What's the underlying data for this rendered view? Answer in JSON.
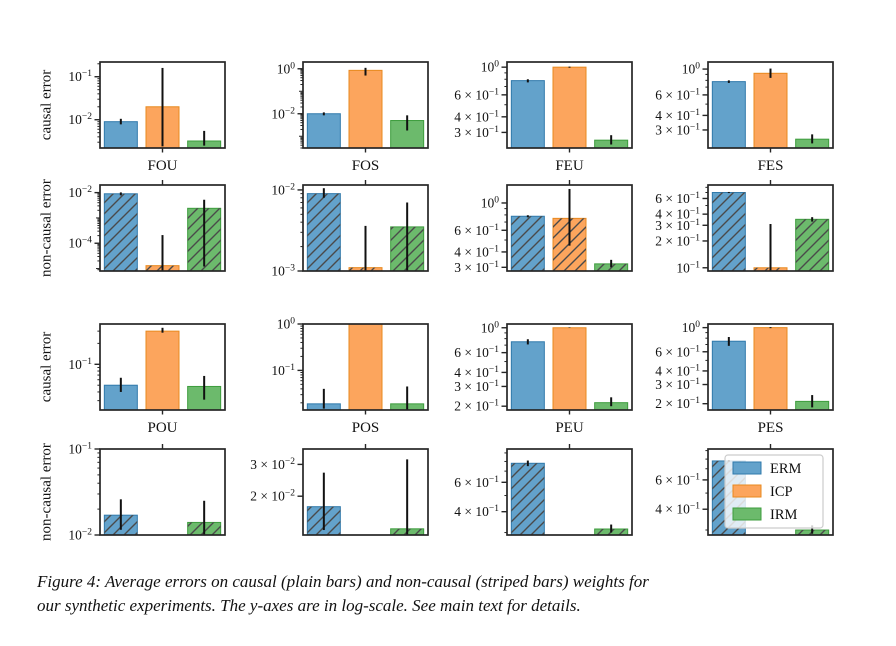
{
  "caption": {
    "line1": "Figure 4: Average errors on causal (plain bars) and non-causal (striped bars) weights for",
    "line2": "our synthetic experiments. The y-axes are in log-scale. See main text for details."
  },
  "colors": {
    "erm_fill": "#63a2cb",
    "erm_edge": "#2f79ab",
    "icp_fill": "#fca55d",
    "icp_edge": "#e8891e",
    "irm_fill": "#6cba6c",
    "irm_edge": "#3d9c3d",
    "hatch": "#4a4a4a",
    "axis": "#262626",
    "errorbar": "#111111",
    "legend_border": "#cccccc",
    "legend_bg": "#ffffff"
  },
  "legend": {
    "entries": [
      {
        "label": "ERM",
        "series": "erm"
      },
      {
        "label": "ICP",
        "series": "icp"
      },
      {
        "label": "IRM",
        "series": "irm"
      }
    ]
  },
  "chart_data": {
    "type": "bar",
    "scale": "log-y",
    "series": [
      "ERM",
      "ICP",
      "IRM"
    ],
    "panels": [
      {
        "name": "FOU-causal",
        "row": 0,
        "col": 0,
        "xlabel": "FOU",
        "ylabel": "causal error",
        "hatched": false,
        "legend": false,
        "ylim": [
          0.0022,
          0.22
        ],
        "yticks": [
          {
            "v": 0.1,
            "m": "",
            "e": "−1"
          },
          {
            "v": 0.01,
            "m": "",
            "e": "−2"
          }
        ],
        "bars": [
          {
            "v": 0.009,
            "lo": 0.0078,
            "hi": 0.0105
          },
          {
            "v": 0.02,
            "lo": 0.0024,
            "hi": 0.16
          },
          {
            "v": 0.0032,
            "lo": 0.0025,
            "hi": 0.0055
          }
        ]
      },
      {
        "name": "FOS-causal",
        "row": 0,
        "col": 1,
        "xlabel": "FOS",
        "ylabel": null,
        "hatched": false,
        "legend": false,
        "ylim": [
          0.0003,
          2.0
        ],
        "yticks": [
          {
            "v": 1,
            "m": "",
            "e": "0"
          },
          {
            "v": 0.01,
            "m": "",
            "e": "−2"
          }
        ],
        "bars": [
          {
            "v": 0.01,
            "lo": 0.0085,
            "hi": 0.0115
          },
          {
            "v": 0.85,
            "lo": 0.5,
            "hi": 1.1
          },
          {
            "v": 0.005,
            "lo": 0.0018,
            "hi": 0.0085
          }
        ]
      },
      {
        "name": "FEU-causal",
        "row": 0,
        "col": 2,
        "xlabel": "FEU",
        "ylabel": null,
        "hatched": false,
        "legend": false,
        "ylim": [
          0.225,
          1.1
        ],
        "yticks": [
          {
            "v": 1,
            "m": "",
            "e": "0"
          },
          {
            "v": 0.6,
            "m": "6",
            "e": "−1"
          },
          {
            "v": 0.4,
            "m": "4",
            "e": "−1"
          },
          {
            "v": 0.3,
            "m": "3",
            "e": "−1"
          }
        ],
        "bars": [
          {
            "v": 0.78,
            "lo": 0.755,
            "hi": 0.8
          },
          {
            "v": 1.0,
            "lo": 0.99,
            "hi": 1.01
          },
          {
            "v": 0.26,
            "lo": 0.24,
            "hi": 0.285
          }
        ]
      },
      {
        "name": "FES-causal",
        "row": 0,
        "col": 3,
        "xlabel": "FES",
        "ylabel": null,
        "hatched": false,
        "legend": false,
        "ylim": [
          0.21,
          1.15
        ],
        "yticks": [
          {
            "v": 1,
            "m": "",
            "e": "0"
          },
          {
            "v": 0.6,
            "m": "6",
            "e": "−1"
          },
          {
            "v": 0.4,
            "m": "4",
            "e": "−1"
          },
          {
            "v": 0.3,
            "m": "3",
            "e": "−1"
          }
        ],
        "bars": [
          {
            "v": 0.78,
            "lo": 0.76,
            "hi": 0.8
          },
          {
            "v": 0.92,
            "lo": 0.84,
            "hi": 1.01
          },
          {
            "v": 0.25,
            "lo": 0.23,
            "hi": 0.275
          }
        ]
      },
      {
        "name": "FOU-noncausal",
        "row": 1,
        "col": 0,
        "xlabel": null,
        "ylabel": "non-causal error",
        "hatched": true,
        "legend": false,
        "ylim": [
          8e-06,
          0.02
        ],
        "yticks": [
          {
            "v": 0.01,
            "m": "",
            "e": "−2"
          },
          {
            "v": 0.0001,
            "m": "",
            "e": "−4"
          }
        ],
        "bars": [
          {
            "v": 0.009,
            "lo": 0.0078,
            "hi": 0.0102
          },
          {
            "v": 1.3e-05,
            "lo": 8e-06,
            "hi": 0.00021
          },
          {
            "v": 0.0024,
            "lo": 1.2e-05,
            "hi": 0.0052
          }
        ]
      },
      {
        "name": "FOS-noncausal",
        "row": 1,
        "col": 1,
        "xlabel": null,
        "ylabel": null,
        "hatched": true,
        "legend": false,
        "ylim": [
          0.001,
          0.0115
        ],
        "yticks": [
          {
            "v": 0.01,
            "m": "",
            "e": "−2"
          },
          {
            "v": 0.001,
            "m": "",
            "e": "−3"
          }
        ],
        "bars": [
          {
            "v": 0.009,
            "lo": 0.008,
            "hi": 0.0105
          },
          {
            "v": 0.0011,
            "lo": 0.001,
            "hi": 0.0036
          },
          {
            "v": 0.0035,
            "lo": 0.001,
            "hi": 0.007
          }
        ]
      },
      {
        "name": "FEU-noncausal",
        "row": 1,
        "col": 2,
        "xlabel": null,
        "ylabel": null,
        "hatched": true,
        "legend": false,
        "ylim": [
          0.28,
          1.4
        ],
        "yticks": [
          {
            "v": 1,
            "m": "",
            "e": "0"
          },
          {
            "v": 0.6,
            "m": "6",
            "e": "−1"
          },
          {
            "v": 0.4,
            "m": "4",
            "e": "−1"
          },
          {
            "v": 0.3,
            "m": "3",
            "e": "−1"
          }
        ],
        "bars": [
          {
            "v": 0.78,
            "lo": 0.765,
            "hi": 0.795
          },
          {
            "v": 0.75,
            "lo": 0.45,
            "hi": 1.3
          },
          {
            "v": 0.32,
            "lo": 0.3,
            "hi": 0.345
          }
        ]
      },
      {
        "name": "FES-noncausal",
        "row": 1,
        "col": 3,
        "xlabel": null,
        "ylabel": null,
        "hatched": true,
        "legend": false,
        "ylim": [
          0.092,
          0.85
        ],
        "yticks": [
          {
            "v": 0.6,
            "m": "6",
            "e": "−1"
          },
          {
            "v": 0.4,
            "m": "4",
            "e": "−1"
          },
          {
            "v": 0.3,
            "m": "3",
            "e": "−1"
          },
          {
            "v": 0.2,
            "m": "2",
            "e": "−1"
          },
          {
            "v": 0.1,
            "m": "",
            "e": "−1"
          }
        ],
        "bars": [
          {
            "v": 0.7,
            "lo": 0.69,
            "hi": 0.71
          },
          {
            "v": 0.1,
            "lo": 0.092,
            "hi": 0.31
          },
          {
            "v": 0.35,
            "lo": 0.33,
            "hi": 0.37
          }
        ]
      },
      {
        "name": "POU-causal",
        "row": 2,
        "col": 0,
        "xlabel": "POU",
        "ylabel": "causal error",
        "hatched": false,
        "legend": false,
        "ylim": [
          0.022,
          0.38
        ],
        "yticks": [
          {
            "v": 0.1,
            "m": "",
            "e": "−1"
          }
        ],
        "bars": [
          {
            "v": 0.05,
            "lo": 0.04,
            "hi": 0.064
          },
          {
            "v": 0.3,
            "lo": 0.285,
            "hi": 0.335
          },
          {
            "v": 0.048,
            "lo": 0.031,
            "hi": 0.068
          }
        ]
      },
      {
        "name": "POS-causal",
        "row": 2,
        "col": 1,
        "xlabel": "POS",
        "ylabel": null,
        "hatched": false,
        "legend": false,
        "ylim": [
          0.014,
          1.0
        ],
        "yticks": [
          {
            "v": 1,
            "m": "",
            "e": "0"
          },
          {
            "v": 0.1,
            "m": "",
            "e": "−1"
          }
        ],
        "bars": [
          {
            "v": 0.019,
            "lo": 0.015,
            "hi": 0.04
          },
          {
            "v": 1.0,
            "lo": 0.99,
            "hi": 1.0
          },
          {
            "v": 0.019,
            "lo": 0.014,
            "hi": 0.045
          }
        ]
      },
      {
        "name": "PEU-causal",
        "row": 2,
        "col": 2,
        "xlabel": "PEU",
        "ylabel": null,
        "hatched": false,
        "legend": false,
        "ylim": [
          0.185,
          1.08
        ],
        "yticks": [
          {
            "v": 1,
            "m": "",
            "e": "0"
          },
          {
            "v": 0.6,
            "m": "6",
            "e": "−1"
          },
          {
            "v": 0.4,
            "m": "4",
            "e": "−1"
          },
          {
            "v": 0.3,
            "m": "3",
            "e": "−1"
          },
          {
            "v": 0.2,
            "m": "2",
            "e": "−1"
          }
        ],
        "bars": [
          {
            "v": 0.75,
            "lo": 0.71,
            "hi": 0.79
          },
          {
            "v": 1.0,
            "lo": 0.995,
            "hi": 1.005
          },
          {
            "v": 0.215,
            "lo": 0.2,
            "hi": 0.24
          }
        ]
      },
      {
        "name": "PES-causal",
        "row": 2,
        "col": 3,
        "xlabel": "PES",
        "ylabel": null,
        "hatched": false,
        "legend": false,
        "ylim": [
          0.175,
          1.08
        ],
        "yticks": [
          {
            "v": 1,
            "m": "",
            "e": "0"
          },
          {
            "v": 0.6,
            "m": "6",
            "e": "−1"
          },
          {
            "v": 0.4,
            "m": "4",
            "e": "−1"
          },
          {
            "v": 0.3,
            "m": "3",
            "e": "−1"
          },
          {
            "v": 0.2,
            "m": "2",
            "e": "−1"
          }
        ],
        "bars": [
          {
            "v": 0.75,
            "lo": 0.68,
            "hi": 0.82
          },
          {
            "v": 1.0,
            "lo": 0.99,
            "hi": 1.01
          },
          {
            "v": 0.21,
            "lo": 0.185,
            "hi": 0.24
          }
        ]
      },
      {
        "name": "POU-noncausal",
        "row": 3,
        "col": 0,
        "xlabel": null,
        "ylabel": "non-causal error",
        "hatched": true,
        "legend": false,
        "ylim": [
          0.01,
          0.1
        ],
        "yticks": [
          {
            "v": 0.1,
            "m": "",
            "e": "−1"
          },
          {
            "v": 0.01,
            "m": "",
            "e": "−2"
          }
        ],
        "bars": [
          {
            "v": 0.017,
            "lo": 0.0115,
            "hi": 0.026
          },
          null,
          {
            "v": 0.014,
            "lo": 0.0095,
            "hi": 0.025
          }
        ]
      },
      {
        "name": "POS-noncausal",
        "row": 3,
        "col": 1,
        "xlabel": null,
        "ylabel": null,
        "hatched": true,
        "legend": false,
        "ylim": [
          0.0122,
          0.0365
        ],
        "yticks": [
          {
            "v": 0.03,
            "m": "3",
            "e": "−2"
          },
          {
            "v": 0.02,
            "m": "2",
            "e": "−2"
          }
        ],
        "bars": [
          {
            "v": 0.0175,
            "lo": 0.013,
            "hi": 0.027
          },
          null,
          {
            "v": 0.0132,
            "lo": 0.0122,
            "hi": 0.032
          }
        ]
      },
      {
        "name": "PEU-noncausal",
        "row": 3,
        "col": 2,
        "xlabel": null,
        "ylabel": null,
        "hatched": true,
        "legend": false,
        "ylim": [
          0.29,
          0.95
        ],
        "yticks": [
          {
            "v": 0.6,
            "m": "6",
            "e": "−1"
          },
          {
            "v": 0.4,
            "m": "4",
            "e": "−1"
          }
        ],
        "bars": [
          {
            "v": 0.78,
            "lo": 0.75,
            "hi": 0.81
          },
          null,
          {
            "v": 0.315,
            "lo": 0.3,
            "hi": 0.335
          }
        ]
      },
      {
        "name": "PES-noncausal",
        "row": 3,
        "col": 3,
        "xlabel": null,
        "ylabel": null,
        "hatched": true,
        "legend": true,
        "ylim": [
          0.28,
          0.92
        ],
        "yticks": [
          {
            "v": 0.6,
            "m": "6",
            "e": "−1"
          },
          {
            "v": 0.4,
            "m": "4",
            "e": "−1"
          }
        ],
        "bars": [
          {
            "v": 0.78,
            "lo": 0.77,
            "hi": 0.79
          },
          null,
          {
            "v": 0.3,
            "lo": 0.285,
            "hi": 0.32
          }
        ]
      }
    ]
  }
}
